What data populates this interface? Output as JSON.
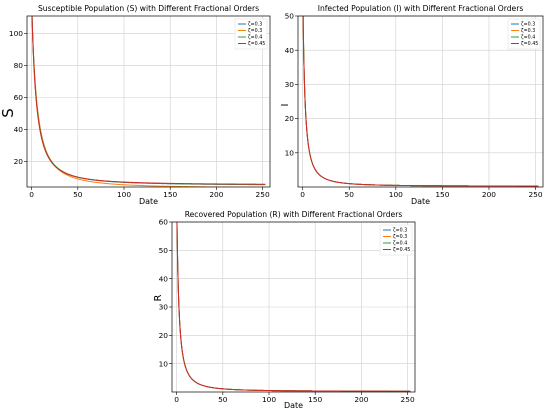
{
  "chart_data": [
    {
      "type": "line",
      "title": "Susceptible Population (S) with Different Fractional Orders",
      "xlabel": "Date",
      "ylabel": "S",
      "xlim": [
        -5,
        258
      ],
      "ylim": [
        4,
        111
      ],
      "xticks": [
        0,
        50,
        100,
        150,
        200,
        250
      ],
      "yticks": [
        20,
        40,
        60,
        80,
        100
      ],
      "grid": true,
      "legend": "top-right",
      "series": [
        {
          "name": "ζ=0.3",
          "color": "#1f77b4",
          "y0": 120,
          "yinf": 5.0,
          "k": 0.12
        },
        {
          "name": "ζ=0.3",
          "color": "#ff7f0e",
          "y0": 120,
          "yinf": 3.2,
          "k": 0.11
        },
        {
          "name": "ζ=0.4",
          "color": "#2ca02c",
          "y0": 120,
          "yinf": 5.1,
          "k": 0.12
        },
        {
          "name": "ζ=0.45",
          "color": "#d62728",
          "y0": 120,
          "yinf": 5.3,
          "k": 0.125
        }
      ]
    },
    {
      "type": "line",
      "title": "Infected Population (I) with Different Fractional Orders",
      "xlabel": "Date",
      "ylabel": "I",
      "xlim": [
        -5,
        258
      ],
      "ylim": [
        0,
        50
      ],
      "xticks": [
        0,
        50,
        100,
        150,
        200,
        250
      ],
      "yticks": [
        10,
        20,
        30,
        40,
        50
      ],
      "grid": true,
      "legend": "top-right",
      "series": [
        {
          "name": "ζ=0.3",
          "color": "#1f77b4",
          "y0": 60,
          "yinf": 0.2,
          "k": 0.28
        },
        {
          "name": "ζ=0.3",
          "color": "#ff7f0e",
          "y0": 60,
          "yinf": 0.2,
          "k": 0.28
        },
        {
          "name": "ζ=0.4",
          "color": "#2ca02c",
          "y0": 60,
          "yinf": 0.2,
          "k": 0.28
        },
        {
          "name": "ζ=0.45",
          "color": "#d62728",
          "y0": 60,
          "yinf": 0.2,
          "k": 0.28
        }
      ]
    },
    {
      "type": "line",
      "title": "Recovered Population (R) with Different Fractional Orders",
      "xlabel": "Date",
      "ylabel": "R",
      "xlim": [
        -5,
        258
      ],
      "ylim": [
        0,
        60
      ],
      "xticks": [
        0,
        50,
        100,
        150,
        200,
        250
      ],
      "yticks": [
        10,
        20,
        30,
        40,
        50,
        60
      ],
      "grid": true,
      "legend": "top-right",
      "series": [
        {
          "name": "ζ=0.3",
          "color": "#1f77b4",
          "y0": 70,
          "yinf": 0.2,
          "k": 0.28
        },
        {
          "name": "ζ=0.3",
          "color": "#ff7f0e",
          "y0": 70,
          "yinf": 0.2,
          "k": 0.28
        },
        {
          "name": "ζ=0.4",
          "color": "#2ca02c",
          "y0": 70,
          "yinf": 0.2,
          "k": 0.28
        },
        {
          "name": "ζ=0.45",
          "color": "#d62728",
          "y0": 70,
          "yinf": 0.2,
          "k": 0.28
        }
      ]
    }
  ]
}
